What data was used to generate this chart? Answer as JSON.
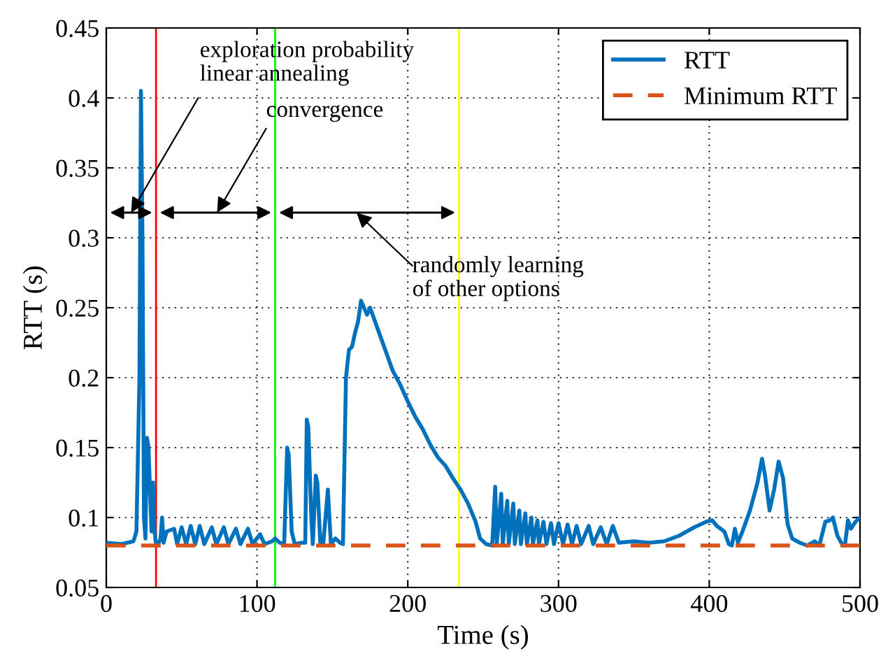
{
  "chart_data": {
    "type": "line",
    "xlabel": "Time (s)",
    "ylabel": "RTT (s)",
    "xlim": [
      0,
      500
    ],
    "ylim": [
      0.05,
      0.45
    ],
    "xticks": [
      0,
      100,
      200,
      300,
      400,
      500
    ],
    "yticks": [
      {
        "value": 0.05,
        "label": "0.05"
      },
      {
        "value": 0.1,
        "label": "0.1"
      },
      {
        "value": 0.15,
        "label": "0.15"
      },
      {
        "value": 0.2,
        "label": "0.2"
      },
      {
        "value": 0.25,
        "label": "0.25"
      },
      {
        "value": 0.3,
        "label": "0.3"
      },
      {
        "value": 0.35,
        "label": "0.35"
      },
      {
        "value": 0.4,
        "label": "0.4"
      },
      {
        "value": 0.45,
        "label": "0.45"
      }
    ],
    "grid": true,
    "legend": "top right",
    "series": [
      {
        "name": "RTT",
        "color": "#0072bd",
        "line_style": "solid",
        "x": [
          0,
          10,
          18,
          20,
          22,
          23,
          24,
          25,
          26,
          27,
          28,
          29,
          30,
          31,
          32,
          33,
          34,
          36,
          37,
          38,
          40,
          45,
          47,
          50,
          53,
          56,
          59,
          62,
          65,
          70,
          73,
          78,
          81,
          86,
          89,
          94,
          97,
          102,
          105,
          110,
          112,
          115,
          118,
          120,
          121,
          123,
          125,
          130,
          132,
          133,
          134,
          136,
          137,
          139,
          140,
          142,
          144,
          147,
          148,
          149,
          152,
          155,
          157,
          159,
          161,
          163,
          165,
          167,
          169,
          171,
          173,
          175,
          180,
          185,
          190,
          195,
          200,
          205,
          210,
          215,
          220,
          225,
          230,
          235,
          240,
          245,
          248,
          252,
          256,
          258,
          259,
          262,
          263,
          266,
          267,
          270,
          271,
          274,
          275,
          278,
          279,
          282,
          283,
          286,
          287,
          290,
          292,
          295,
          297,
          300,
          303,
          306,
          309,
          312,
          315,
          320,
          323,
          328,
          332,
          336,
          340,
          350,
          360,
          370,
          380,
          390,
          398,
          402,
          405,
          410,
          413,
          415,
          417,
          419,
          422,
          427,
          432,
          435,
          437,
          440,
          443,
          446,
          449,
          452,
          455,
          460,
          465,
          470,
          473,
          477,
          480,
          482,
          485,
          488,
          490,
          492,
          494,
          497,
          500
        ],
        "values": [
          0.082,
          0.081,
          0.083,
          0.09,
          0.2,
          0.405,
          0.3,
          0.1,
          0.085,
          0.157,
          0.15,
          0.12,
          0.09,
          0.125,
          0.09,
          0.081,
          0.08,
          0.085,
          0.1,
          0.082,
          0.09,
          0.092,
          0.081,
          0.093,
          0.081,
          0.094,
          0.081,
          0.094,
          0.081,
          0.093,
          0.081,
          0.093,
          0.081,
          0.092,
          0.081,
          0.092,
          0.081,
          0.088,
          0.081,
          0.083,
          0.085,
          0.082,
          0.081,
          0.15,
          0.145,
          0.09,
          0.081,
          0.082,
          0.082,
          0.17,
          0.165,
          0.1,
          0.081,
          0.13,
          0.125,
          0.082,
          0.082,
          0.12,
          0.1,
          0.081,
          0.085,
          0.082,
          0.081,
          0.2,
          0.22,
          0.222,
          0.232,
          0.24,
          0.255,
          0.25,
          0.245,
          0.25,
          0.235,
          0.22,
          0.205,
          0.195,
          0.183,
          0.172,
          0.163,
          0.152,
          0.143,
          0.137,
          0.128,
          0.12,
          0.11,
          0.097,
          0.085,
          0.081,
          0.08,
          0.122,
          0.081,
          0.117,
          0.081,
          0.112,
          0.081,
          0.11,
          0.081,
          0.105,
          0.081,
          0.103,
          0.081,
          0.1,
          0.081,
          0.098,
          0.081,
          0.097,
          0.081,
          0.096,
          0.081,
          0.096,
          0.081,
          0.095,
          0.081,
          0.094,
          0.081,
          0.094,
          0.081,
          0.093,
          0.081,
          0.094,
          0.082,
          0.083,
          0.082,
          0.083,
          0.087,
          0.093,
          0.097,
          0.098,
          0.094,
          0.09,
          0.081,
          0.08,
          0.092,
          0.082,
          0.09,
          0.105,
          0.125,
          0.142,
          0.13,
          0.105,
          0.12,
          0.14,
          0.128,
          0.095,
          0.085,
          0.082,
          0.08,
          0.083,
          0.08,
          0.097,
          0.098,
          0.1,
          0.087,
          0.081,
          0.08,
          0.098,
          0.092,
          0.097,
          0.1
        ]
      },
      {
        "name": "Minimum RTT",
        "color": "#d95319",
        "line_style": "dashed",
        "x": [
          0,
          500
        ],
        "values": [
          0.08,
          0.08
        ]
      }
    ],
    "ref_lines": [
      {
        "axis": "x",
        "value": 33,
        "color": "#ff0000"
      },
      {
        "axis": "x",
        "value": 112,
        "color": "#00ff00"
      },
      {
        "axis": "x",
        "value": 234,
        "color": "#ffff00"
      }
    ],
    "annotations": [
      "exploration probability\nlinear annealing",
      "convergence",
      "randomly learning\nof other options"
    ]
  }
}
